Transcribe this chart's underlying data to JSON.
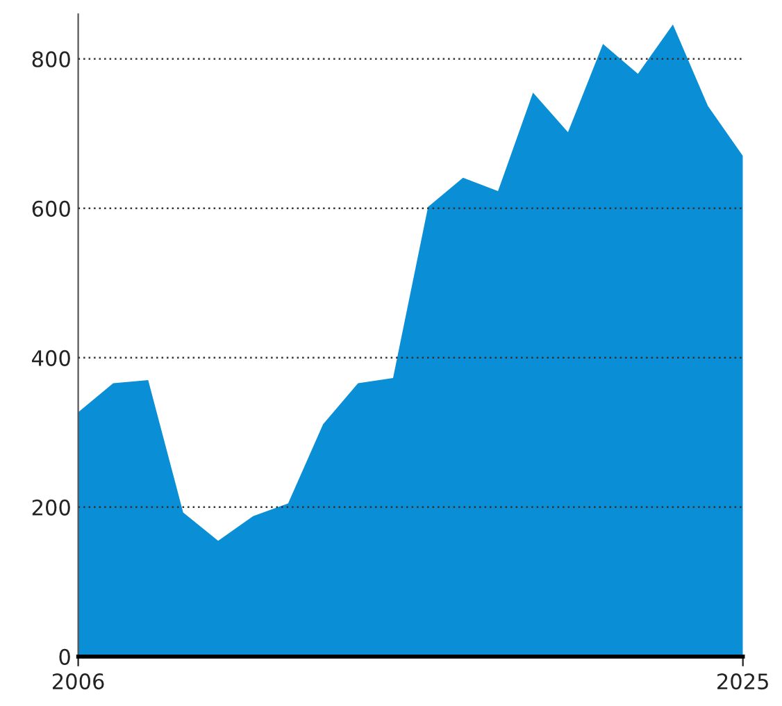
{
  "chart_data": {
    "type": "area",
    "x": [
      2006,
      2007,
      2008,
      2009,
      2010,
      2011,
      2012,
      2013,
      2014,
      2015,
      2016,
      2017,
      2018,
      2019,
      2020,
      2021,
      2022,
      2023,
      2024,
      2025
    ],
    "values": [
      327,
      366,
      370,
      193,
      155,
      188,
      205,
      311,
      366,
      373,
      602,
      641,
      623,
      755,
      702,
      820,
      780,
      846,
      737,
      670
    ],
    "color": "#0a8fd6",
    "xlim": [
      2006,
      2025
    ],
    "xticks": [
      2006,
      2025
    ],
    "ylim": [
      0,
      860
    ],
    "yticks": [
      0,
      200,
      400,
      600,
      800
    ],
    "grid": "y"
  }
}
